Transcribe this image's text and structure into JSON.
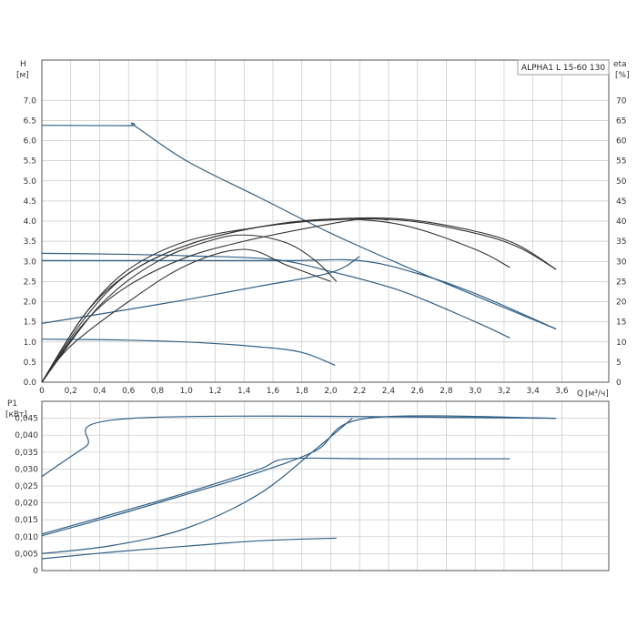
{
  "chart_data": [
    {
      "type": "line",
      "title": "",
      "legend_text": "ALPHA1 L 15-60 130",
      "legend_placement": "top-right",
      "grid": true,
      "xlabel_name": "Q",
      "xlabel_unit": "[м³/ч]",
      "ylabel_name": "H",
      "ylabel_unit": "[м]",
      "y2label_name": "eta",
      "y2label_unit": "[%]",
      "xlim": [
        0,
        3.8
      ],
      "ylim": [
        0,
        8
      ],
      "y2lim": [
        0,
        80
      ],
      "x_ticks": [
        "0",
        "0,2",
        "0,4",
        "0,6",
        "0,8",
        "1,0",
        "1,2",
        "1,4",
        "1,6",
        "1,8",
        "2,0",
        "2,2",
        "2,4",
        "2,6",
        "2,8",
        "3,0",
        "3,2",
        "3,4",
        "3,6"
      ],
      "y_ticks": [
        "0.0",
        "0.5",
        "1.0",
        "1.5",
        "2.0",
        "2.5",
        "3.0",
        "3.5",
        "4.0",
        "4.5",
        "5.0",
        "5.5",
        "6.0",
        "6.5",
        "7.0"
      ],
      "y2_ticks": [
        "0",
        "5",
        "10",
        "15",
        "20",
        "25",
        "30",
        "35",
        "40",
        "45",
        "50",
        "55",
        "60",
        "65",
        "70"
      ],
      "series": [
        {
          "color": "#2e5f86",
          "axis": "H",
          "points": [
            [
              0,
              6.38
            ],
            [
              0.6,
              6.37
            ],
            [
              0.64,
              6.37
            ],
            [
              1.0,
              5.5
            ],
            [
              1.5,
              4.6
            ],
            [
              2.0,
              3.7
            ],
            [
              2.5,
              2.9
            ],
            [
              3.0,
              2.15
            ],
            [
              3.56,
              1.32
            ]
          ]
        },
        {
          "color": "#2e5f86",
          "axis": "H",
          "points": [
            [
              0,
              3.2
            ],
            [
              0.5,
              3.18
            ],
            [
              1.0,
              3.14
            ],
            [
              1.6,
              3.05
            ],
            [
              2.0,
              2.75
            ],
            [
              2.5,
              2.25
            ],
            [
              3.0,
              1.5
            ],
            [
              3.24,
              1.1
            ]
          ]
        },
        {
          "color": "#2e5f86",
          "axis": "H",
          "points": [
            [
              0,
              3.02
            ],
            [
              0.8,
              3.02
            ],
            [
              1.7,
              3.02
            ],
            [
              2.2,
              3.02
            ],
            [
              2.6,
              2.7
            ],
            [
              3.0,
              2.2
            ],
            [
              3.56,
              1.32
            ]
          ]
        },
        {
          "color": "#2e5f86",
          "axis": "H",
          "points": [
            [
              0,
              1.46
            ],
            [
              0.5,
              1.75
            ],
            [
              1.0,
              2.05
            ],
            [
              1.5,
              2.38
            ],
            [
              2.0,
              2.72
            ],
            [
              2.2,
              3.12
            ]
          ]
        },
        {
          "color": "#2e5f86",
          "axis": "H",
          "points": [
            [
              0,
              1.07
            ],
            [
              0.5,
              1.05
            ],
            [
              1.0,
              1.0
            ],
            [
              1.5,
              0.88
            ],
            [
              1.8,
              0.74
            ],
            [
              2.03,
              0.42
            ]
          ]
        },
        {
          "color": "#333333",
          "axis": "eta",
          "points": [
            [
              0,
              0
            ],
            [
              0.3,
              17
            ],
            [
              0.6,
              28
            ],
            [
              1.0,
              35
            ],
            [
              1.5,
              38.5
            ],
            [
              2.0,
              40.3
            ],
            [
              2.5,
              40.2
            ],
            [
              3.0,
              37
            ],
            [
              3.3,
              33.5
            ],
            [
              3.56,
              28
            ]
          ]
        },
        {
          "color": "#333333",
          "axis": "eta",
          "points": [
            [
              0,
              0
            ],
            [
              0.3,
              16
            ],
            [
              0.6,
              27
            ],
            [
              1.0,
              34
            ],
            [
              1.5,
              38.5
            ],
            [
              2.0,
              40.5
            ],
            [
              2.5,
              40.5
            ],
            [
              3.0,
              37.5
            ],
            [
              3.3,
              34
            ],
            [
              3.56,
              28
            ]
          ]
        },
        {
          "color": "#333333",
          "axis": "eta",
          "points": [
            [
              0,
              0
            ],
            [
              0.3,
              17
            ],
            [
              0.6,
              27
            ],
            [
              1.0,
              34
            ],
            [
              1.5,
              38.5
            ],
            [
              2.0,
              40.5
            ],
            [
              2.5,
              39
            ],
            [
              3.0,
              33
            ],
            [
              3.24,
              28.5
            ]
          ]
        },
        {
          "color": "#333333",
          "axis": "eta",
          "points": [
            [
              0,
              0
            ],
            [
              0.3,
              15
            ],
            [
              0.6,
              24
            ],
            [
              1.0,
              31
            ],
            [
              1.4,
              35
            ],
            [
              1.8,
              38
            ],
            [
              2.2,
              40.5
            ],
            [
              2.4,
              40.3
            ]
          ]
        },
        {
          "color": "#333333",
          "axis": "eta",
          "points": [
            [
              0,
              0
            ],
            [
              0.4,
              19
            ],
            [
              0.8,
              30
            ],
            [
              1.2,
              35.5
            ],
            [
              1.44,
              36.5
            ],
            [
              1.7,
              34.5
            ],
            [
              1.9,
              30
            ],
            [
              2.04,
              25
            ]
          ]
        },
        {
          "color": "#333333",
          "axis": "eta",
          "points": [
            [
              0,
              0
            ],
            [
              0.2,
              9
            ],
            [
              0.6,
              20
            ],
            [
              1.0,
              29
            ],
            [
              1.4,
              33
            ],
            [
              1.7,
              29
            ],
            [
              2.0,
              25
            ]
          ]
        }
      ]
    },
    {
      "type": "line",
      "title": "",
      "grid": true,
      "ylabel_name": "P1",
      "ylabel_unit": "[кВт]",
      "xlim": [
        0,
        3.8
      ],
      "ylim": [
        0,
        0.05
      ],
      "y_ticks": [
        "0",
        "0,005",
        "0,010",
        "0,015",
        "0,020",
        "0,025",
        "0,030",
        "0,035",
        "0,040",
        "0,045"
      ],
      "series": [
        {
          "color": "#2e5f86",
          "points": [
            [
              0,
              0.0278
            ],
            [
              0.3,
              0.0365
            ],
            [
              0.63,
              0.045
            ],
            [
              3.56,
              0.045
            ]
          ]
        },
        {
          "color": "#2e5f86",
          "points": [
            [
              0,
              0.0103
            ],
            [
              0.5,
              0.0162
            ],
            [
              1.0,
              0.0225
            ],
            [
              1.5,
              0.029
            ],
            [
              1.9,
              0.0355
            ],
            [
              2.25,
              0.045
            ],
            [
              3.56,
              0.045
            ]
          ]
        },
        {
          "color": "#2e5f86",
          "points": [
            [
              0,
              0.0108
            ],
            [
              0.5,
              0.0168
            ],
            [
              1.0,
              0.023
            ],
            [
              1.5,
              0.0298
            ],
            [
              1.7,
              0.033
            ],
            [
              2.3,
              0.033
            ],
            [
              3.24,
              0.033
            ]
          ]
        },
        {
          "color": "#2e5f86",
          "points": [
            [
              0,
              0.005
            ],
            [
              0.5,
              0.0075
            ],
            [
              1.0,
              0.0125
            ],
            [
              1.5,
              0.0225
            ],
            [
              1.9,
              0.036
            ],
            [
              2.15,
              0.045
            ]
          ]
        },
        {
          "color": "#2e5f86",
          "points": [
            [
              0,
              0.0035
            ],
            [
              0.5,
              0.0055
            ],
            [
              1.0,
              0.0072
            ],
            [
              1.5,
              0.0088
            ],
            [
              2.04,
              0.0096
            ]
          ]
        }
      ]
    }
  ]
}
